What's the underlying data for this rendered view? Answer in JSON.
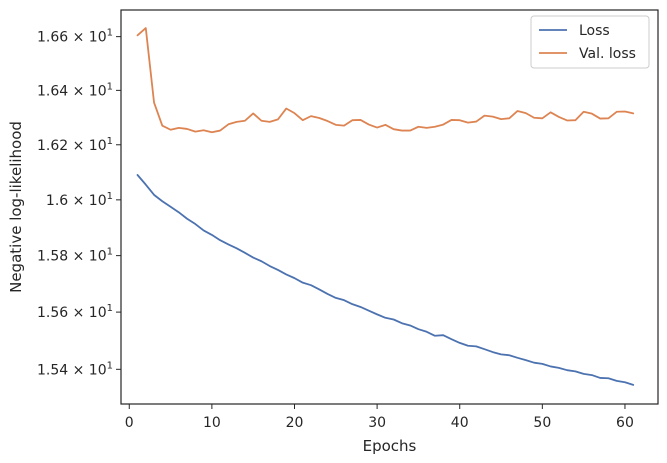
{
  "chart_data": {
    "type": "line",
    "xlabel": "Epochs",
    "ylabel": "Negative log-likelihood",
    "xlim": [
      -1.0,
      64.0
    ],
    "ylim": [
      15.28,
      16.7
    ],
    "y_scale": "log",
    "grid": false,
    "legend_position": "top-right",
    "x_ticks": [
      {
        "value": 0,
        "label": "0"
      },
      {
        "value": 10,
        "label": "10"
      },
      {
        "value": 20,
        "label": "20"
      },
      {
        "value": 30,
        "label": "30"
      },
      {
        "value": 40,
        "label": "40"
      },
      {
        "value": 50,
        "label": "50"
      },
      {
        "value": 60,
        "label": "60"
      }
    ],
    "y_ticks": [
      {
        "value": 15.4,
        "mant": "1.54",
        "exp": "1"
      },
      {
        "value": 15.6,
        "mant": "1.56",
        "exp": "1"
      },
      {
        "value": 15.8,
        "mant": "1.58",
        "exp": "1"
      },
      {
        "value": 16.0,
        "mant": "1.6",
        "exp": "1"
      },
      {
        "value": 16.2,
        "mant": "1.62",
        "exp": "1"
      },
      {
        "value": 16.4,
        "mant": "1.64",
        "exp": "1"
      },
      {
        "value": 16.6,
        "mant": "1.66",
        "exp": "1"
      }
    ],
    "x": [
      1,
      2,
      3,
      4,
      5,
      6,
      7,
      8,
      9,
      10,
      11,
      12,
      13,
      14,
      15,
      16,
      17,
      18,
      19,
      20,
      21,
      22,
      23,
      24,
      25,
      26,
      27,
      28,
      29,
      30,
      31,
      32,
      33,
      34,
      35,
      36,
      37,
      38,
      39,
      40,
      41,
      42,
      43,
      44,
      45,
      46,
      47,
      48,
      49,
      50,
      51,
      52,
      53,
      54,
      55,
      56,
      57,
      58,
      59,
      60,
      61
    ],
    "series": [
      {
        "name": "Loss",
        "color": "#4c72b0",
        "values": [
          16.09,
          16.055,
          16.018,
          15.995,
          15.975,
          15.955,
          15.932,
          15.913,
          15.89,
          15.874,
          15.855,
          15.84,
          15.826,
          15.81,
          15.793,
          15.78,
          15.763,
          15.749,
          15.733,
          15.72,
          15.704,
          15.695,
          15.68,
          15.664,
          15.65,
          15.642,
          15.628,
          15.618,
          15.605,
          15.592,
          15.58,
          15.574,
          15.561,
          15.553,
          15.54,
          15.531,
          15.517,
          15.519,
          15.505,
          15.492,
          15.482,
          15.48,
          15.47,
          15.46,
          15.452,
          15.449,
          15.44,
          15.432,
          15.423,
          15.419,
          15.41,
          15.405,
          15.397,
          15.393,
          15.384,
          15.38,
          15.37,
          15.369,
          15.36,
          15.355,
          15.346
        ]
      },
      {
        "name": "Val. loss",
        "color": "#dd8452",
        "values": [
          16.605,
          16.632,
          16.355,
          16.27,
          16.255,
          16.262,
          16.258,
          16.248,
          16.253,
          16.246,
          16.252,
          16.275,
          16.284,
          16.288,
          16.315,
          16.288,
          16.284,
          16.293,
          16.333,
          16.316,
          16.29,
          16.305,
          16.298,
          16.287,
          16.273,
          16.27,
          16.29,
          16.291,
          16.274,
          16.263,
          16.273,
          16.257,
          16.252,
          16.252,
          16.266,
          16.262,
          16.266,
          16.274,
          16.291,
          16.29,
          16.281,
          16.285,
          16.307,
          16.303,
          16.294,
          16.297,
          16.324,
          16.316,
          16.299,
          16.297,
          16.319,
          16.302,
          16.289,
          16.29,
          16.321,
          16.314,
          16.296,
          16.297,
          16.321,
          16.322,
          16.315
        ]
      }
    ]
  }
}
